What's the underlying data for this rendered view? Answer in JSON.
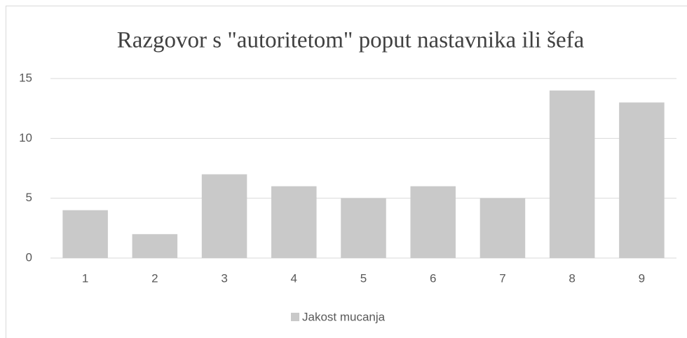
{
  "chart_data": {
    "type": "bar",
    "title": "Razgovor s \"autoritetom\" poput nastavnika ili šefa",
    "categories": [
      "1",
      "2",
      "3",
      "4",
      "5",
      "6",
      "7",
      "8",
      "9"
    ],
    "series": [
      {
        "name": "Jakost mucanja",
        "color": "#c9c9c9",
        "values": [
          4,
          2,
          7,
          6,
          5,
          6,
          5,
          14,
          13
        ]
      }
    ],
    "ylim": [
      0,
      15
    ],
    "yticks": [
      0,
      5,
      10,
      15
    ],
    "grid": true,
    "legend": "bottom"
  }
}
